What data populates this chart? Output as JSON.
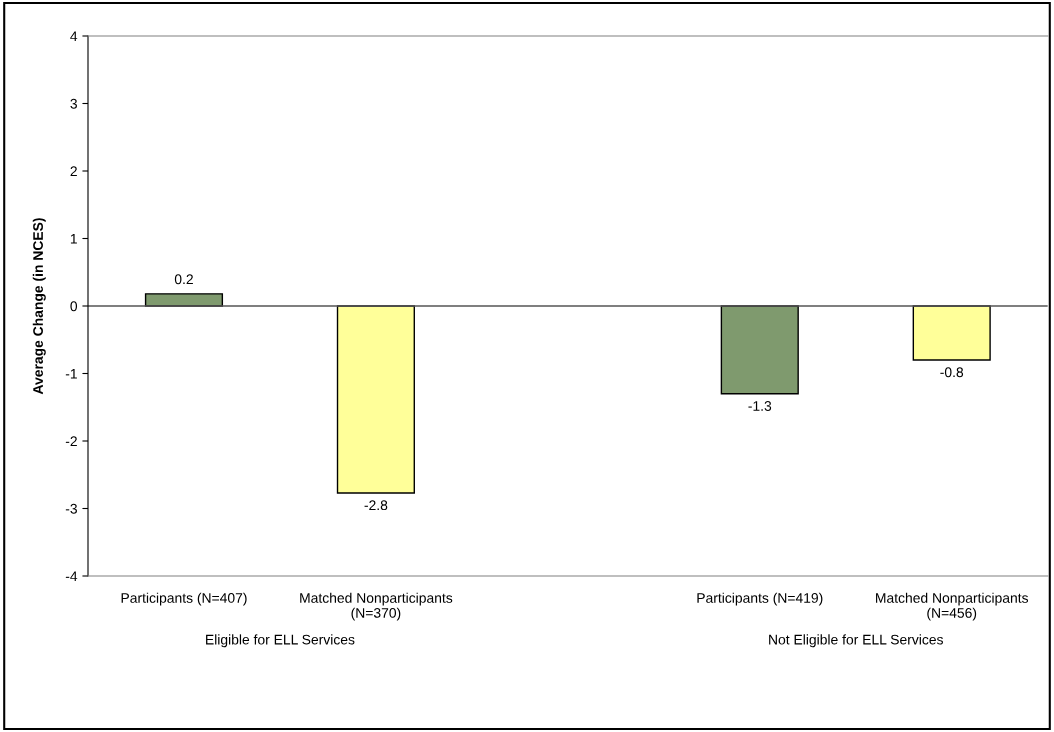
{
  "chart_data": {
    "type": "bar",
    "ylabel": "Average Change (in NCES)",
    "categories": [
      "Participants (N=407)",
      "Matched Nonparticipants\n(N=370)",
      null,
      "Participants (N=419)",
      "Matched Nonparticipants\n(N=456)"
    ],
    "values": [
      0.18,
      -2.77,
      null,
      -1.3,
      -0.8
    ],
    "value_labels": [
      "0.2",
      "-2.8",
      null,
      "-1.3",
      "-0.8"
    ],
    "colors": [
      "#7f9a6e",
      "#ffff99",
      null,
      "#7f9a6e",
      "#ffff99"
    ],
    "ylim": [
      -4,
      4
    ],
    "yticks": [
      -4,
      -3,
      -2,
      -1,
      0,
      1,
      2,
      3,
      4
    ],
    "annotations": [
      "Eligible for ELL Services",
      "Not Eligible for ELL Services"
    ],
    "legend": false
  }
}
